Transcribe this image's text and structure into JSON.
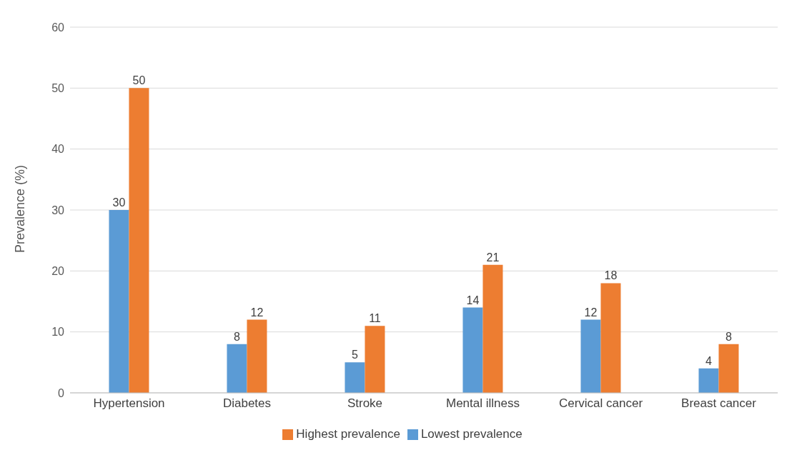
{
  "chart_data": {
    "type": "bar",
    "ylabel": "Prevalence (%)",
    "categories": [
      "Hypertension",
      "Diabetes",
      "Stroke",
      "Mental illness",
      "Cervical cancer",
      "Breast cancer"
    ],
    "series": [
      {
        "name": "Lowest prevalence",
        "color": "#5b9bd5",
        "values": [
          30,
          8,
          5,
          14,
          12,
          4
        ]
      },
      {
        "name": "Highest prevalence",
        "color": "#ed7d31",
        "values": [
          50,
          12,
          11,
          21,
          18,
          8
        ]
      }
    ],
    "ylim": [
      0,
      60
    ],
    "yticks": [
      0,
      10,
      20,
      30,
      40,
      50,
      60
    ],
    "grid": "y",
    "legend": "bottom",
    "data_labels": true
  }
}
